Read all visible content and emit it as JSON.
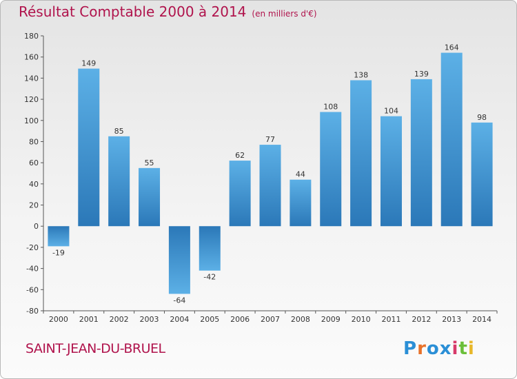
{
  "title": "Résultat Comptable 2000 à 2014",
  "subtitle": "(en milliers d'€)",
  "commune": "SAINT-JEAN-DU-BRUEL",
  "logo": {
    "letters": [
      "P",
      "r",
      "o",
      "x",
      "i",
      "t",
      "i"
    ],
    "colors": [
      "#2b8fd6",
      "#e8722a",
      "#2b8fd6",
      "#2b8fd6",
      "#d73a6a",
      "#6bbf3a",
      "#e8b82a"
    ]
  },
  "colors": {
    "bar_top": "#5cb0e6",
    "bar_bottom": "#2b78b8",
    "title": "#b0134c"
  },
  "chart_data": {
    "type": "bar",
    "categories": [
      "2000",
      "2001",
      "2002",
      "2003",
      "2004",
      "2005",
      "2006",
      "2007",
      "2008",
      "2009",
      "2010",
      "2011",
      "2012",
      "2013",
      "2014"
    ],
    "values": [
      -19,
      149,
      85,
      55,
      -64,
      -42,
      62,
      77,
      44,
      108,
      138,
      104,
      139,
      164,
      98
    ],
    "ylim": [
      -80,
      180
    ],
    "yticks": [
      -80,
      -60,
      -40,
      -20,
      0,
      20,
      40,
      60,
      80,
      100,
      120,
      140,
      160,
      180
    ],
    "grid": false,
    "legend": "none"
  }
}
